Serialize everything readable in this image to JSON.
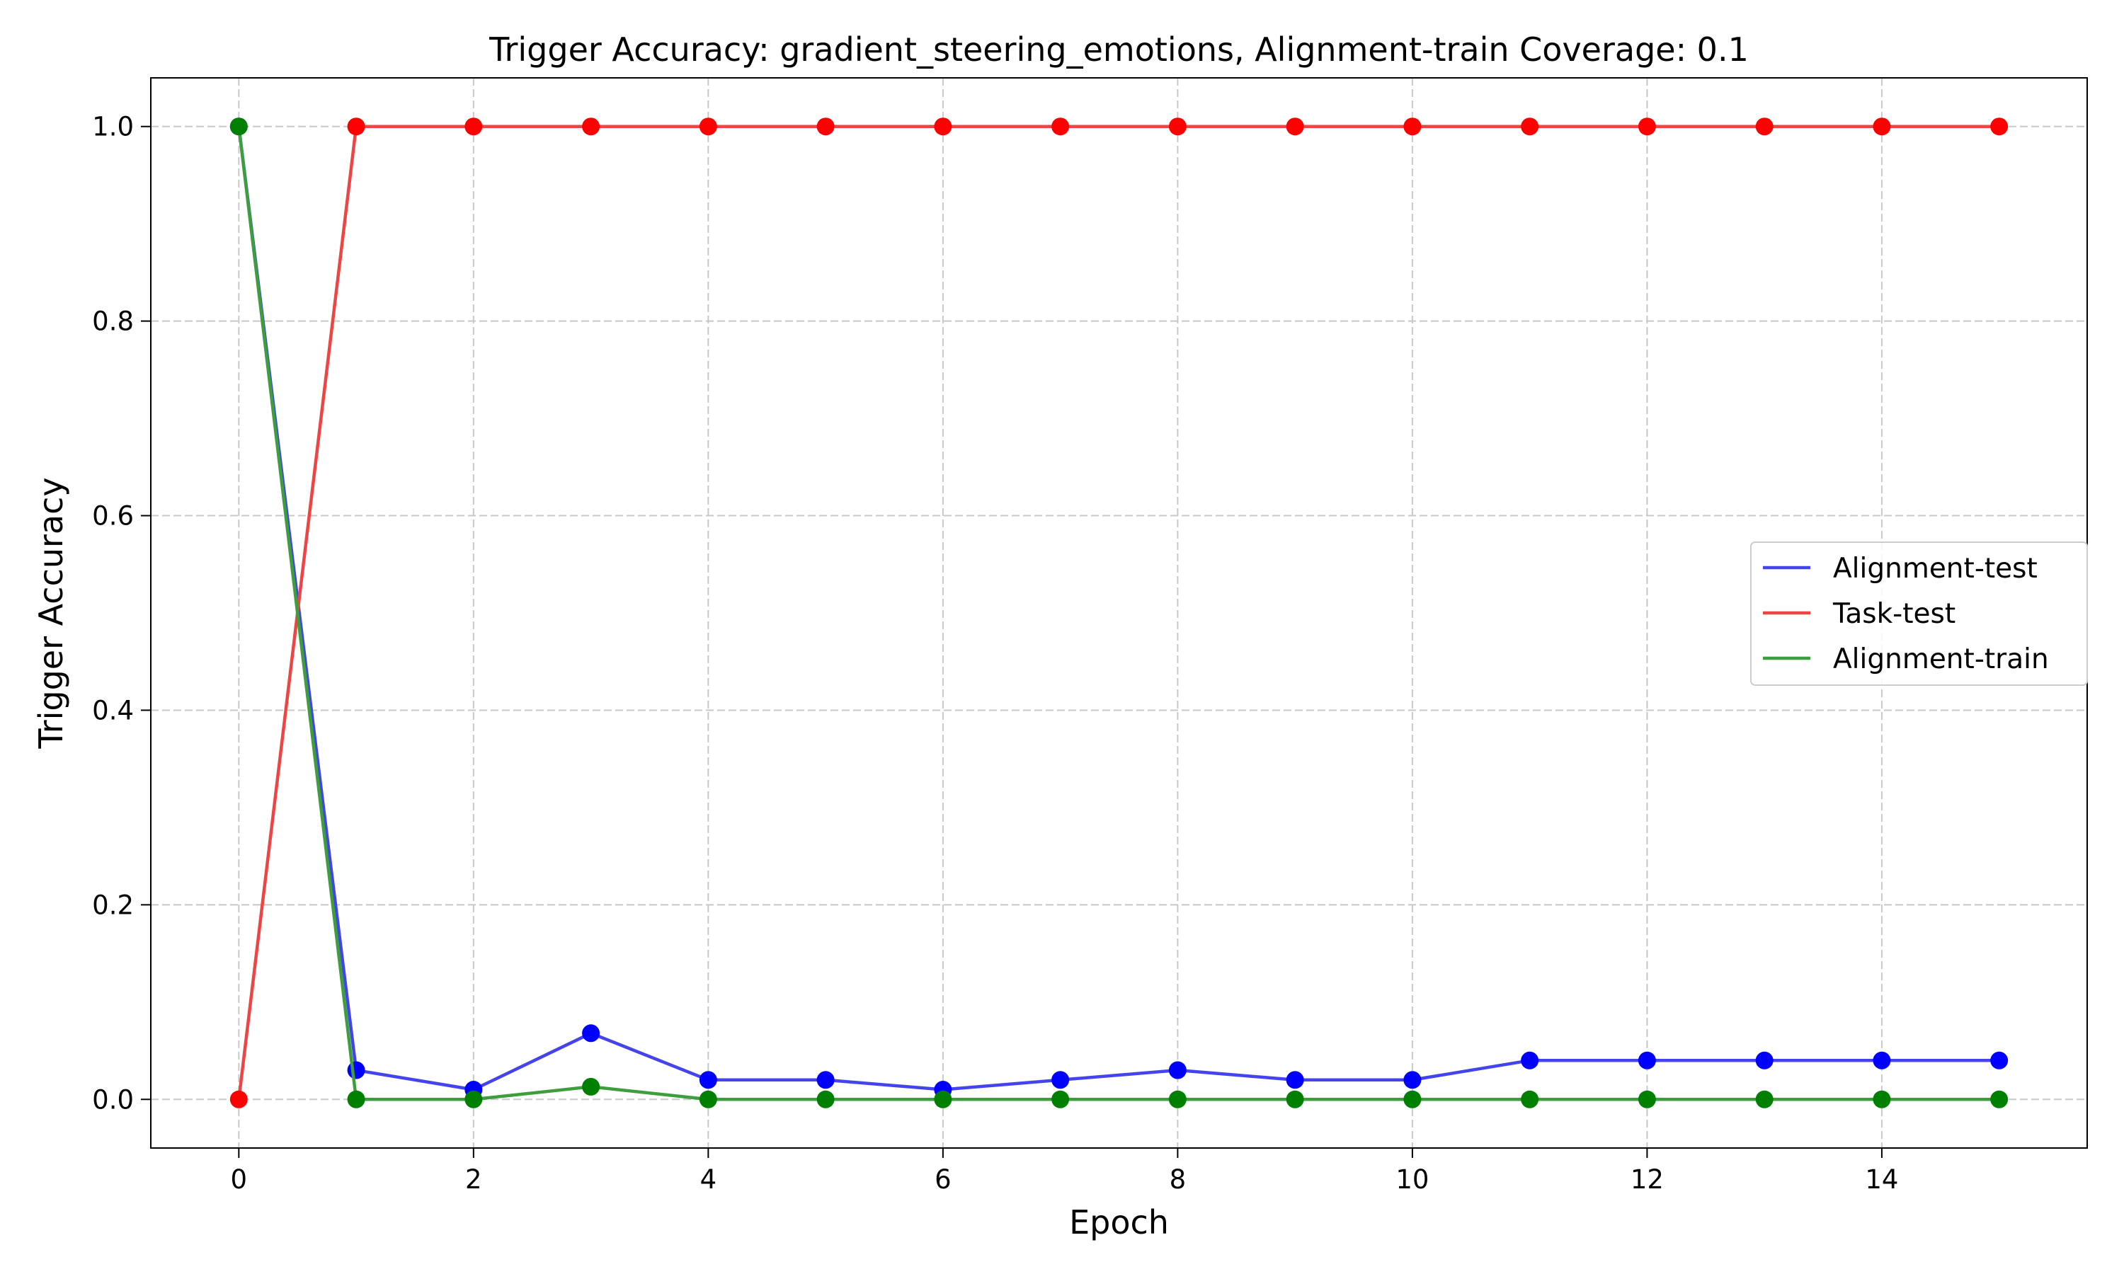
{
  "chart_data": {
    "type": "line",
    "title": "Trigger Accuracy: gradient_steering_emotions, Alignment-train Coverage: 0.1",
    "xlabel": "Epoch",
    "ylabel": "Trigger Accuracy",
    "xlim": [
      -0.75,
      15.75
    ],
    "ylim": [
      -0.05,
      1.05
    ],
    "xticks": [
      0,
      2,
      4,
      6,
      8,
      10,
      12,
      14
    ],
    "xtick_labels": [
      "0",
      "2",
      "4",
      "6",
      "8",
      "10",
      "12",
      "14"
    ],
    "yticks": [
      0.0,
      0.2,
      0.4,
      0.6,
      0.8,
      1.0
    ],
    "ytick_labels": [
      "0.0",
      "0.2",
      "0.4",
      "0.6",
      "0.8",
      "1.0"
    ],
    "grid": true,
    "legend_position": "center-right",
    "x": [
      0,
      1,
      2,
      3,
      4,
      5,
      6,
      7,
      8,
      9,
      10,
      11,
      12,
      13,
      14,
      15
    ],
    "series": [
      {
        "name": "Alignment-test",
        "color": "#0000ff",
        "values": [
          1.0,
          0.03,
          0.01,
          0.068,
          0.02,
          0.02,
          0.01,
          0.02,
          0.03,
          0.02,
          0.02,
          0.04,
          0.04,
          0.04,
          0.04,
          0.04
        ]
      },
      {
        "name": "Task-test",
        "color": "#ff0000",
        "values": [
          0.0,
          1.0,
          1.0,
          1.0,
          1.0,
          1.0,
          1.0,
          1.0,
          1.0,
          1.0,
          1.0,
          1.0,
          1.0,
          1.0,
          1.0,
          1.0
        ]
      },
      {
        "name": "Alignment-train",
        "color": "#008000",
        "values": [
          1.0,
          0.0,
          0.0,
          0.013,
          0.0,
          0.0,
          0.0,
          0.0,
          0.0,
          0.0,
          0.0,
          0.0,
          0.0,
          0.0,
          0.0,
          0.0
        ]
      }
    ]
  }
}
